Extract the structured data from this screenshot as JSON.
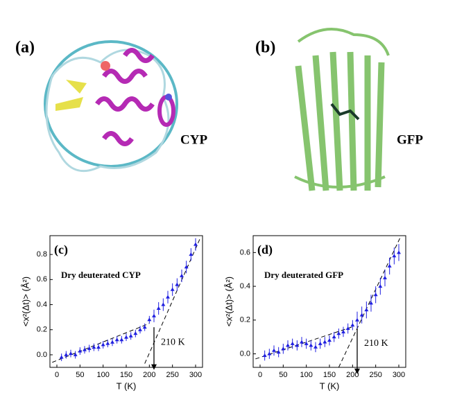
{
  "panels": {
    "a": "(a)",
    "b": "(b)",
    "cyp": "CYP",
    "gfp": "GFP"
  },
  "chart_data": [
    {
      "type": "scatter",
      "panel": "(c)",
      "annotation": "Dry deuterated CYP",
      "marker_label": "210 K",
      "x_label": "T (K)",
      "y_label": "<x²(Δt)> (Å²)",
      "color": "#1f1fe0",
      "xlim": [
        -15,
        315
      ],
      "xticks": [
        0,
        50,
        100,
        150,
        200,
        250,
        300
      ],
      "ylim": [
        -0.1,
        0.95
      ],
      "yticks": [
        {
          "value": 0,
          "label": "0.0"
        },
        0.2,
        0.4,
        0.6,
        0.8
      ],
      "x": [
        10,
        20,
        30,
        40,
        50,
        60,
        70,
        80,
        90,
        100,
        110,
        120,
        130,
        140,
        150,
        160,
        170,
        180,
        190,
        200,
        210,
        220,
        230,
        240,
        250,
        260,
        270,
        280,
        290,
        300
      ],
      "values": [
        -0.02,
        0.0,
        0.01,
        0.0,
        0.03,
        0.04,
        0.05,
        0.06,
        0.06,
        0.08,
        0.09,
        0.1,
        0.12,
        0.12,
        0.14,
        0.15,
        0.17,
        0.2,
        0.22,
        0.28,
        0.31,
        0.37,
        0.4,
        0.46,
        0.52,
        0.56,
        0.63,
        0.7,
        0.8,
        0.88
      ],
      "errors": [
        0.03,
        0.03,
        0.03,
        0.03,
        0.03,
        0.03,
        0.03,
        0.03,
        0.03,
        0.03,
        0.03,
        0.03,
        0.03,
        0.03,
        0.03,
        0.03,
        0.03,
        0.03,
        0.03,
        0.03,
        0.05,
        0.05,
        0.05,
        0.05,
        0.05,
        0.05,
        0.05,
        0.05,
        0.05,
        0.05
      ],
      "fit_lines": [
        {
          "x": [
            -10,
            200
          ],
          "y": [
            -0.06,
            0.25
          ]
        },
        {
          "x": [
            190,
            310
          ],
          "y": [
            -0.07,
            0.93
          ]
        }
      ],
      "arrow": {
        "x": 210,
        "y": [
          0.22,
          -0.12
        ]
      }
    },
    {
      "type": "scatter",
      "panel": "(d)",
      "annotation": "Dry deuterated GFP",
      "marker_label": "210 K",
      "x_label": "T (K)",
      "y_label": "<x²(Δt)> (Å²)",
      "color": "#1f1fe0",
      "xlim": [
        -15,
        315
      ],
      "xticks": [
        0,
        50,
        100,
        150,
        200,
        250,
        300
      ],
      "ylim": [
        -0.08,
        0.7
      ],
      "yticks": [
        {
          "value": 0,
          "label": "0.0"
        },
        0.2,
        0.4,
        0.6
      ],
      "x": [
        10,
        20,
        30,
        40,
        50,
        60,
        70,
        80,
        90,
        100,
        110,
        120,
        130,
        140,
        150,
        160,
        170,
        180,
        190,
        200,
        210,
        220,
        230,
        240,
        250,
        260,
        270,
        280,
        290,
        300
      ],
      "values": [
        -0.01,
        0.0,
        0.02,
        0.01,
        0.03,
        0.05,
        0.06,
        0.05,
        0.07,
        0.06,
        0.05,
        0.04,
        0.06,
        0.07,
        0.08,
        0.1,
        0.12,
        0.13,
        0.15,
        0.17,
        0.2,
        0.23,
        0.26,
        0.3,
        0.35,
        0.4,
        0.45,
        0.52,
        0.58,
        0.6
      ],
      "errors": [
        0.03,
        0.03,
        0.03,
        0.03,
        0.03,
        0.03,
        0.03,
        0.03,
        0.03,
        0.03,
        0.03,
        0.03,
        0.03,
        0.03,
        0.03,
        0.03,
        0.03,
        0.03,
        0.03,
        0.03,
        0.05,
        0.05,
        0.05,
        0.05,
        0.05,
        0.05,
        0.05,
        0.05,
        0.05,
        0.05
      ],
      "fit_lines": [
        {
          "x": [
            -10,
            200
          ],
          "y": [
            -0.03,
            0.16
          ]
        },
        {
          "x": [
            170,
            305
          ],
          "y": [
            -0.08,
            0.7
          ]
        }
      ],
      "arrow": {
        "x": 210,
        "y": [
          0.15,
          -0.12
        ]
      }
    }
  ]
}
